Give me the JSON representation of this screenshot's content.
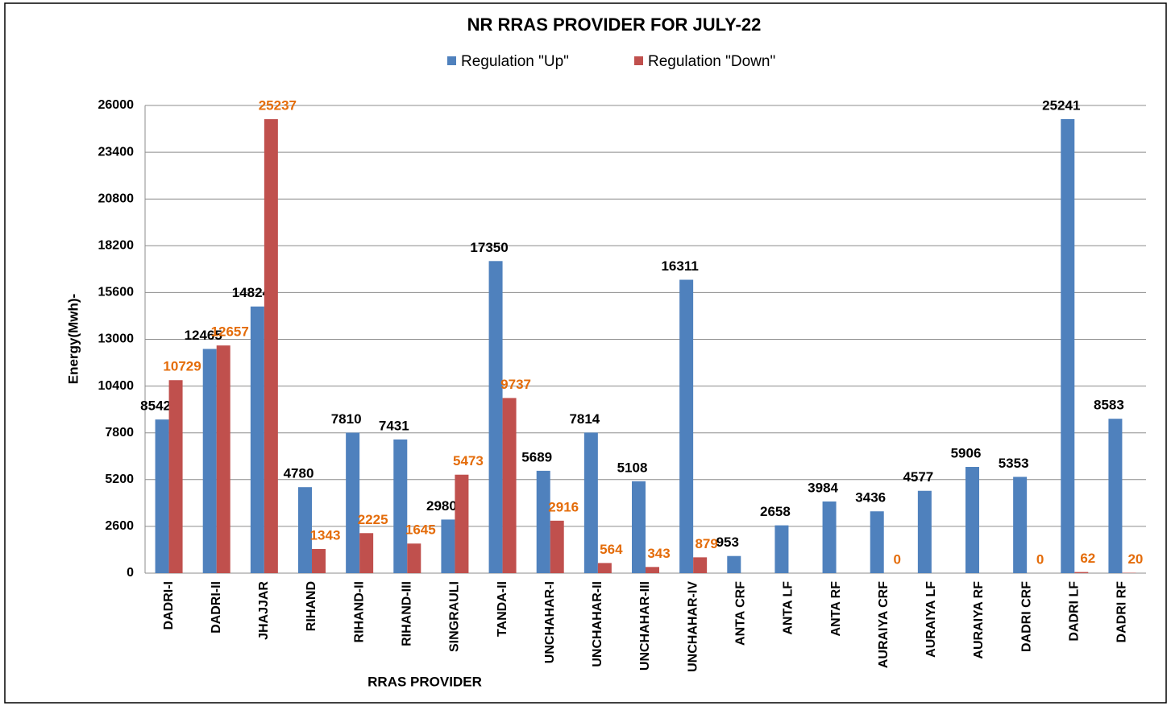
{
  "chart_data": {
    "type": "bar",
    "title": "NR RRAS PROVIDER FOR JULY-22",
    "x_label": "RRAS PROVIDER",
    "y_label": "Energy(Mwh)-",
    "categories": [
      "DADRI-I",
      "DADRI-II",
      "JHAJJAR",
      "RIHAND",
      "RIHAND-II",
      "RIHAND-III",
      "SINGRAULI",
      "TANDA-II",
      "UNCHAHAR-I",
      "UNCHAHAR-II",
      "UNCHAHAR-III",
      "UNCHAHAR-IV",
      "ANTA CRF",
      "ANTA LF",
      "ANTA RF",
      "AURAIYA CRF",
      "AURAIYA LF",
      "AURAIYA RF",
      "DADRI CRF",
      "DADRI LF",
      "DADRI RF"
    ],
    "series": [
      {
        "name": "Regulation \"Up\"",
        "color": "#4f81bd",
        "label_color": "#000000",
        "values": [
          8542,
          12465,
          14824,
          4780,
          7810,
          7431,
          2980,
          17350,
          5689,
          7814,
          5108,
          16311,
          953,
          2658,
          3984,
          3436,
          4577,
          5906,
          5353,
          25241,
          8583
        ]
      },
      {
        "name": "Regulation \"Down\"",
        "color": "#c0504d",
        "label_color": "#e46c0a",
        "values": [
          10729,
          12657,
          25237,
          1343,
          2225,
          1645,
          5473,
          9737,
          2916,
          564,
          343,
          879,
          null,
          null,
          null,
          0,
          null,
          null,
          0,
          62,
          20
        ]
      }
    ],
    "ylim": [
      0,
      26000
    ],
    "yticks": [
      0,
      2600,
      5200,
      7800,
      10400,
      13000,
      15600,
      18200,
      20800,
      23400,
      26000
    ],
    "grid": true
  }
}
